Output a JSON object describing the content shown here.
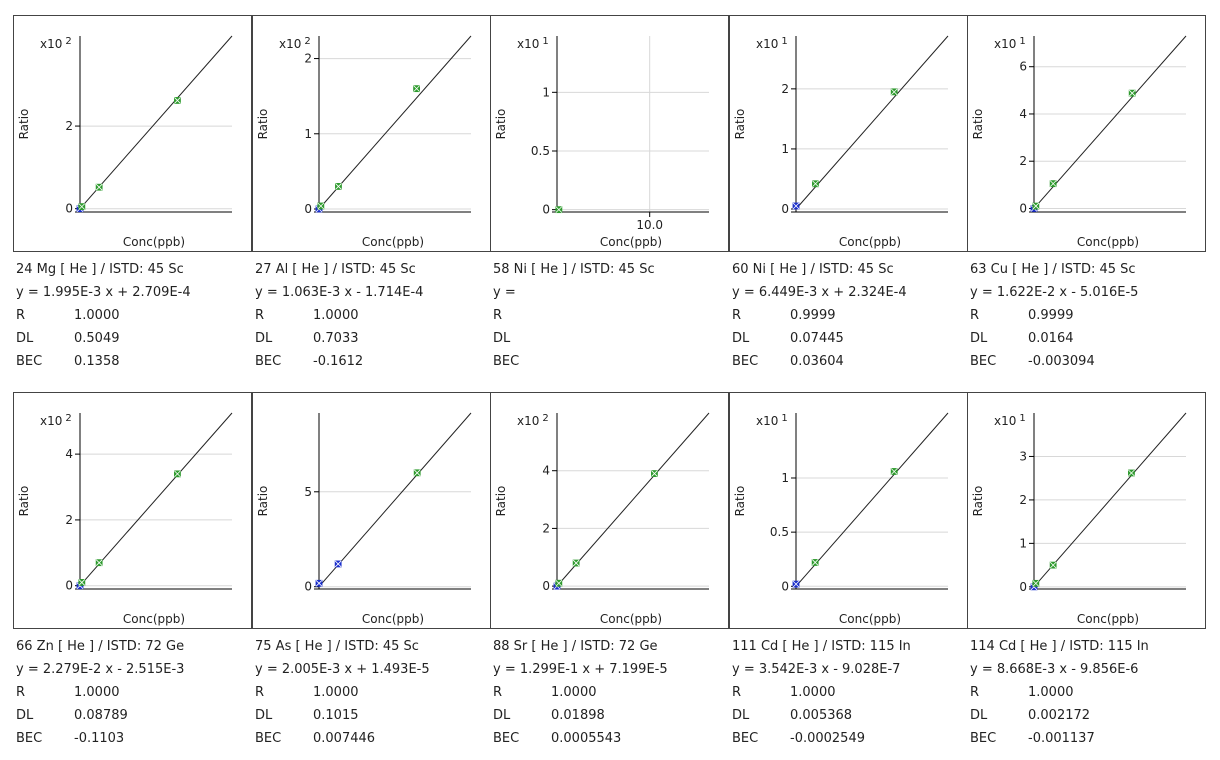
{
  "common": {
    "ylabel": "Ratio",
    "xlabel": "Conc(ppb)",
    "r_label": "R",
    "dl_label": "DL",
    "bec_label": "BEC"
  },
  "colors": {
    "std_point": "#2e9b2e",
    "blank_point": "#1a2ecc",
    "line": "#222222",
    "grid": "#d8d8d8",
    "axis": "#000000",
    "border": "#444444"
  },
  "chart_data": [
    {
      "type": "scatter",
      "analyte": "24 Mg [ He ] / ISTD: 45 Sc",
      "equation": "y = 1.995E-3 x + 2.709E-4",
      "r": "1.0000",
      "dl": "0.5049",
      "bec": "0.1358",
      "exponent": "2",
      "y_ticks": [
        {
          "v": 0,
          "label": "0"
        },
        {
          "v": 2,
          "label": "2"
        }
      ],
      "x_ticks": [],
      "ylim": [
        -0.08,
        4.18
      ],
      "xlim": [
        0,
        1.0
      ],
      "has_line": true,
      "line_end": [
        1.0,
        4.18
      ],
      "points": [
        {
          "x": 0.0,
          "y": 0.0,
          "kind": "blank"
        },
        {
          "x": 0.012,
          "y": 0.05,
          "kind": "std"
        },
        {
          "x": 0.126,
          "y": 0.52,
          "kind": "std"
        },
        {
          "x": 0.641,
          "y": 2.62,
          "kind": "std"
        }
      ]
    },
    {
      "type": "scatter",
      "analyte": "27 Al [ He ] / ISTD: 45 Sc",
      "equation": "y = 1.063E-3 x - 1.714E-4",
      "r": "1.0000",
      "dl": "0.7033",
      "bec": "-0.1612",
      "exponent": "2",
      "y_ticks": [
        {
          "v": 0,
          "label": "0"
        },
        {
          "v": 1,
          "label": "1"
        },
        {
          "v": 2,
          "label": "2"
        }
      ],
      "x_ticks": [],
      "ylim": [
        -0.04,
        2.3
      ],
      "xlim": [
        0,
        1.0
      ],
      "has_line": true,
      "line_end": [
        1.0,
        2.3
      ],
      "points": [
        {
          "x": 0.0,
          "y": 0.0,
          "kind": "blank"
        },
        {
          "x": 0.012,
          "y": 0.04,
          "kind": "std"
        },
        {
          "x": 0.128,
          "y": 0.3,
          "kind": "std"
        },
        {
          "x": 0.642,
          "y": 1.6,
          "kind": "std"
        }
      ]
    },
    {
      "type": "scatter",
      "analyte": "58 Ni [ He ] / ISTD: 45 Sc",
      "equation": "y =",
      "r": "",
      "dl": "",
      "bec": "",
      "exponent": "1",
      "y_ticks": [
        {
          "v": 0,
          "label": "0"
        },
        {
          "v": 0.5,
          "label": "0.5"
        },
        {
          "v": 1,
          "label": "1"
        }
      ],
      "x_ticks": [
        {
          "v": 10,
          "label": "10.0"
        }
      ],
      "ylim": [
        -0.02,
        1.48
      ],
      "xlim": [
        0,
        16.4
      ],
      "has_line": false,
      "points": [
        {
          "x": 0.2,
          "y": 0.0,
          "kind": "std"
        }
      ]
    },
    {
      "type": "scatter",
      "analyte": "60 Ni [ He ] / ISTD: 45 Sc",
      "equation": "y = 6.449E-3 x + 2.324E-4",
      "r": "0.9999",
      "dl": "0.07445",
      "bec": "0.03604",
      "exponent": "1",
      "y_ticks": [
        {
          "v": 0,
          "label": "0"
        },
        {
          "v": 1,
          "label": "1"
        },
        {
          "v": 2,
          "label": "2"
        }
      ],
      "x_ticks": [],
      "ylim": [
        -0.05,
        2.88
      ],
      "xlim": [
        0,
        1.0
      ],
      "has_line": true,
      "line_end": [
        1.0,
        2.88
      ],
      "points": [
        {
          "x": 0.0,
          "y": 0.05,
          "kind": "blank"
        },
        {
          "x": 0.128,
          "y": 0.42,
          "kind": "std"
        },
        {
          "x": 0.646,
          "y": 1.95,
          "kind": "std"
        }
      ]
    },
    {
      "type": "scatter",
      "analyte": "63 Cu [ He ] / ISTD: 45 Sc",
      "equation": "y = 1.622E-2 x - 5.016E-5",
      "r": "0.9999",
      "dl": "0.0164",
      "bec": "-0.003094",
      "exponent": "1",
      "y_ticks": [
        {
          "v": 0,
          "label": "0"
        },
        {
          "v": 2,
          "label": "2"
        },
        {
          "v": 4,
          "label": "4"
        },
        {
          "v": 6,
          "label": "6"
        }
      ],
      "x_ticks": [],
      "ylim": [
        -0.15,
        7.3
      ],
      "xlim": [
        0,
        1.0
      ],
      "has_line": true,
      "line_end": [
        1.0,
        7.3
      ],
      "points": [
        {
          "x": 0.0,
          "y": 0.0,
          "kind": "blank"
        },
        {
          "x": 0.012,
          "y": 0.1,
          "kind": "std"
        },
        {
          "x": 0.126,
          "y": 1.05,
          "kind": "std"
        },
        {
          "x": 0.646,
          "y": 4.88,
          "kind": "std"
        }
      ]
    },
    {
      "type": "scatter",
      "analyte": "66 Zn [ He ] / ISTD: 72 Ge",
      "equation": "y = 2.279E-2 x - 2.515E-3",
      "r": "1.0000",
      "dl": "0.08789",
      "bec": "-0.1103",
      "exponent": "2",
      "y_ticks": [
        {
          "v": 0,
          "label": "0"
        },
        {
          "v": 2,
          "label": "2"
        },
        {
          "v": 4,
          "label": "4"
        }
      ],
      "x_ticks": [],
      "ylim": [
        -0.1,
        5.25
      ],
      "xlim": [
        0,
        1.0
      ],
      "has_line": true,
      "line_end": [
        1.0,
        5.25
      ],
      "points": [
        {
          "x": 0.0,
          "y": 0.0,
          "kind": "blank"
        },
        {
          "x": 0.012,
          "y": 0.1,
          "kind": "std"
        },
        {
          "x": 0.126,
          "y": 0.7,
          "kind": "std"
        },
        {
          "x": 0.641,
          "y": 3.4,
          "kind": "std"
        }
      ]
    },
    {
      "type": "scatter",
      "analyte": "75 As [ He ] / ISTD: 45 Sc",
      "equation": "y = 2.005E-3 x + 1.493E-5",
      "r": "1.0000",
      "dl": "0.1015",
      "bec": "0.007446",
      "exponent": "",
      "y_ticks": [
        {
          "v": 0,
          "label": "0"
        },
        {
          "v": 5,
          "label": "5"
        }
      ],
      "x_ticks": [],
      "ylim": [
        -0.12,
        9.15
      ],
      "xlim": [
        0,
        1.0
      ],
      "has_line": true,
      "line_end": [
        1.0,
        9.15
      ],
      "points": [
        {
          "x": 0.0,
          "y": 0.18,
          "kind": "blank"
        },
        {
          "x": 0.126,
          "y": 1.2,
          "kind": "blank"
        },
        {
          "x": 0.646,
          "y": 6.0,
          "kind": "std"
        }
      ]
    },
    {
      "type": "scatter",
      "analyte": "88 Sr [ He ] / ISTD: 72 Ge",
      "equation": "y = 1.299E-1 x + 7.199E-5",
      "r": "1.0000",
      "dl": "0.01898",
      "bec": "0.0005543",
      "exponent": "2",
      "y_ticks": [
        {
          "v": 0,
          "label": "0"
        },
        {
          "v": 2,
          "label": "2"
        },
        {
          "v": 4,
          "label": "4"
        }
      ],
      "x_ticks": [],
      "ylim": [
        -0.1,
        6.0
      ],
      "xlim": [
        0,
        1.0
      ],
      "has_line": true,
      "line_end": [
        1.0,
        6.0
      ],
      "points": [
        {
          "x": 0.0,
          "y": 0.0,
          "kind": "blank"
        },
        {
          "x": 0.012,
          "y": 0.1,
          "kind": "std"
        },
        {
          "x": 0.126,
          "y": 0.8,
          "kind": "std"
        },
        {
          "x": 0.641,
          "y": 3.9,
          "kind": "std"
        }
      ]
    },
    {
      "type": "scatter",
      "analyte": "111 Cd [ He ] / ISTD: 115 In",
      "equation": "y = 3.542E-3 x - 9.028E-7",
      "r": "1.0000",
      "dl": "0.005368",
      "bec": "-0.0002549",
      "exponent": "1",
      "y_ticks": [
        {
          "v": 0,
          "label": "0"
        },
        {
          "v": 0.5,
          "label": "0.5"
        },
        {
          "v": 1,
          "label": "1"
        }
      ],
      "x_ticks": [],
      "ylim": [
        -0.025,
        1.6
      ],
      "xlim": [
        0,
        1.0
      ],
      "has_line": true,
      "line_end": [
        1.0,
        1.6
      ],
      "points": [
        {
          "x": 0.0,
          "y": 0.02,
          "kind": "blank"
        },
        {
          "x": 0.126,
          "y": 0.22,
          "kind": "std"
        },
        {
          "x": 0.646,
          "y": 1.06,
          "kind": "std"
        }
      ]
    },
    {
      "type": "scatter",
      "analyte": "114 Cd [ He ] / ISTD: 115 In",
      "equation": "y = 8.668E-3 x - 9.856E-6",
      "r": "1.0000",
      "dl": "0.002172",
      "bec": "-0.001137",
      "exponent": "1",
      "y_ticks": [
        {
          "v": 0,
          "label": "0"
        },
        {
          "v": 1,
          "label": "1"
        },
        {
          "v": 2,
          "label": "2"
        },
        {
          "v": 3,
          "label": "3"
        }
      ],
      "x_ticks": [],
      "ylim": [
        -0.05,
        4.0
      ],
      "xlim": [
        0,
        1.0
      ],
      "has_line": true,
      "line_end": [
        1.0,
        4.0
      ],
      "points": [
        {
          "x": 0.0,
          "y": 0.0,
          "kind": "blank"
        },
        {
          "x": 0.012,
          "y": 0.08,
          "kind": "std"
        },
        {
          "x": 0.126,
          "y": 0.5,
          "kind": "std"
        },
        {
          "x": 0.641,
          "y": 2.62,
          "kind": "std"
        }
      ]
    }
  ]
}
